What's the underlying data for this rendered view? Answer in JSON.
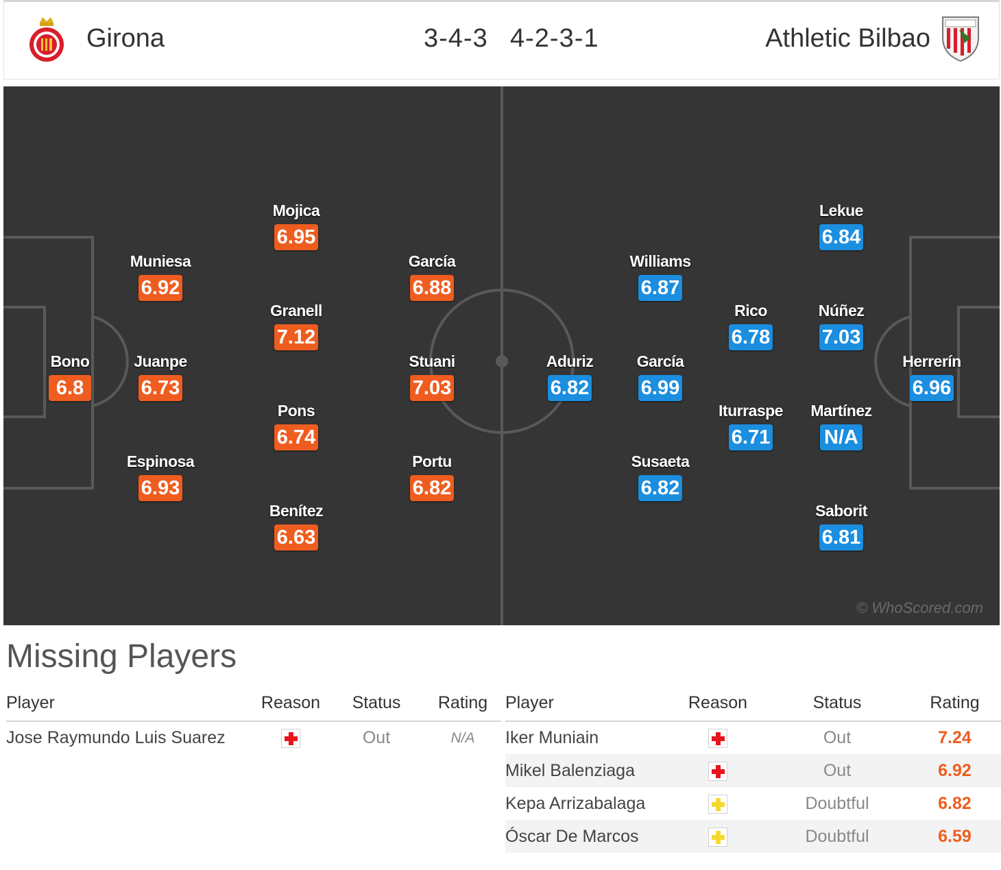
{
  "colors": {
    "home_rating": "#ee5d1f",
    "away_rating": "#1b8ee0",
    "pitch": "#353535",
    "injury": "#e8141c",
    "doubtful": "#f5d930"
  },
  "header": {
    "home_team": "Girona",
    "away_team": "Athletic Bilbao",
    "home_formation": "3-4-3",
    "away_formation": "4-2-3-1",
    "home_crest_icon": "girona-crest-icon",
    "away_crest_icon": "athletic-bilbao-crest-icon"
  },
  "pitch": {
    "watermark": "© WhoScored.com",
    "home_players": [
      {
        "name": "Bono",
        "rating": "6.8"
      },
      {
        "name": "Muniesa",
        "rating": "6.92"
      },
      {
        "name": "Juanpe",
        "rating": "6.73"
      },
      {
        "name": "Espinosa",
        "rating": "6.93"
      },
      {
        "name": "Mojica",
        "rating": "6.95"
      },
      {
        "name": "Granell",
        "rating": "7.12"
      },
      {
        "name": "Pons",
        "rating": "6.74"
      },
      {
        "name": "Benítez",
        "rating": "6.63"
      },
      {
        "name": "García",
        "rating": "6.88"
      },
      {
        "name": "Stuani",
        "rating": "7.03"
      },
      {
        "name": "Portu",
        "rating": "6.82"
      }
    ],
    "away_players": [
      {
        "name": "Aduriz",
        "rating": "6.82"
      },
      {
        "name": "Williams",
        "rating": "6.87"
      },
      {
        "name": "García",
        "rating": "6.99"
      },
      {
        "name": "Susaeta",
        "rating": "6.82"
      },
      {
        "name": "Rico",
        "rating": "6.78"
      },
      {
        "name": "Iturraspe",
        "rating": "6.71"
      },
      {
        "name": "Lekue",
        "rating": "6.84"
      },
      {
        "name": "Núñez",
        "rating": "7.03"
      },
      {
        "name": "Martínez",
        "rating": "N/A"
      },
      {
        "name": "Saborit",
        "rating": "6.81"
      },
      {
        "name": "Herrerín",
        "rating": "6.96"
      }
    ]
  },
  "missing": {
    "title": "Missing Players",
    "columns": {
      "player": "Player",
      "reason": "Reason",
      "status": "Status",
      "rating": "Rating"
    },
    "home": [
      {
        "player": "Jose Raymundo Luis Suarez",
        "reason_icon": "injury-icon",
        "status": "Out",
        "rating": "N/A"
      }
    ],
    "away": [
      {
        "player": "Iker Muniain",
        "reason_icon": "injury-icon",
        "status": "Out",
        "rating": "7.24"
      },
      {
        "player": "Mikel Balenziaga",
        "reason_icon": "injury-icon",
        "status": "Out",
        "rating": "6.92"
      },
      {
        "player": "Kepa Arrizabalaga",
        "reason_icon": "doubtful-icon",
        "status": "Doubtful",
        "rating": "6.82"
      },
      {
        "player": "Óscar De Marcos",
        "reason_icon": "doubtful-icon",
        "status": "Doubtful",
        "rating": "6.59"
      }
    ]
  }
}
